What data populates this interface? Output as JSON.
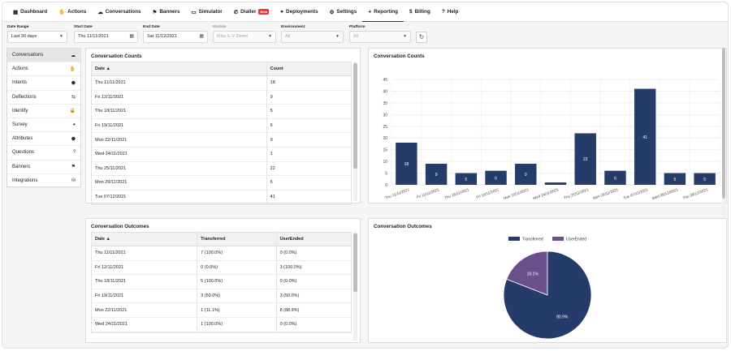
{
  "nav": {
    "items": [
      {
        "icon": "dashboard-icon",
        "glyph": "▦",
        "label": "Dashboard"
      },
      {
        "icon": "actions-icon",
        "glyph": "✋",
        "label": "Actions"
      },
      {
        "icon": "conversations-icon",
        "glyph": "☁",
        "label": "Conversations"
      },
      {
        "icon": "banners-icon",
        "glyph": "⚑",
        "label": "Banners"
      },
      {
        "icon": "simulator-icon",
        "glyph": "▭",
        "label": "Simulator"
      },
      {
        "icon": "dialler-icon",
        "glyph": "✆",
        "label": "Dialler",
        "badge": "Beta"
      },
      {
        "icon": "deployments-icon",
        "glyph": "●",
        "label": "Deployments"
      },
      {
        "icon": "settings-icon",
        "glyph": "⚙",
        "label": "Settings"
      },
      {
        "icon": "reporting-icon",
        "glyph": "◕",
        "label": "Reporting",
        "active": true
      },
      {
        "icon": "billing-icon",
        "glyph": "$",
        "label": "Billing"
      },
      {
        "icon": "help-icon",
        "glyph": "?",
        "label": "Help"
      }
    ]
  },
  "filters": {
    "date_range": {
      "label": "Date Range",
      "value": "Last 30 days"
    },
    "start_date": {
      "label": "Start Date",
      "value": "Thu 11/11/2021"
    },
    "end_date": {
      "label": "End Date",
      "value": "Sat 11/12/2021"
    },
    "module": {
      "label": "Module",
      "value": "Mike E.V Demo"
    },
    "environment": {
      "label": "Environment",
      "value": "All"
    },
    "platform": {
      "label": "Platform",
      "value": "All"
    }
  },
  "sidebar": {
    "items": [
      {
        "label": "Conversations",
        "glyph": "☁",
        "icon": "conversations-icon",
        "active": true
      },
      {
        "label": "Actions",
        "glyph": "✋",
        "icon": "actions-icon"
      },
      {
        "label": "Intents",
        "glyph": "⬣",
        "icon": "intents-icon"
      },
      {
        "label": "Deflections",
        "glyph": "⇆",
        "icon": "deflections-icon"
      },
      {
        "label": "Identify",
        "glyph": "🔒",
        "icon": "lock-icon"
      },
      {
        "label": "Survey",
        "glyph": "◕",
        "icon": "survey-icon"
      },
      {
        "label": "Attributes",
        "glyph": "⬣",
        "icon": "tag-icon"
      },
      {
        "label": "Questions",
        "glyph": "?",
        "icon": "question-icon"
      },
      {
        "label": "Banners",
        "glyph": "⚑",
        "icon": "flag-icon"
      },
      {
        "label": "Integrations",
        "glyph": "⛁",
        "icon": "database-icon"
      }
    ]
  },
  "counts_table": {
    "title": "Conversation Counts",
    "headers": [
      "Date ▲",
      "Count"
    ],
    "rows": [
      [
        "Thu 11/11/2021",
        "18"
      ],
      [
        "Fri 12/11/2021",
        "9"
      ],
      [
        "Thu 18/11/2021",
        "5"
      ],
      [
        "Fri 19/11/2021",
        "6"
      ],
      [
        "Mon 22/11/2021",
        "9"
      ],
      [
        "Wed 24/11/2021",
        "1"
      ],
      [
        "Thu 25/11/2021",
        "22"
      ],
      [
        "Mon 29/11/2021",
        "6"
      ],
      [
        "Tue 07/12/2021",
        "41"
      ]
    ]
  },
  "outcomes_table": {
    "title": "Conversation Outcomes",
    "headers": [
      "Date ▲",
      "Transferred",
      "UserEnded"
    ],
    "rows": [
      [
        "Thu 11/11/2021",
        "7 (100.0%)",
        "0 (0.0%)"
      ],
      [
        "Fri 12/11/2021",
        "0 (0.0%)",
        "3 (100.0%)"
      ],
      [
        "Thu 18/11/2021",
        "5 (100.0%)",
        "0 (0.0%)"
      ],
      [
        "Fri 19/11/2021",
        "3 (50.0%)",
        "3 (50.0%)"
      ],
      [
        "Mon 22/11/2021",
        "1 (11.1%)",
        "8 (88.9%)"
      ],
      [
        "Wed 24/11/2021",
        "1 (100.0%)",
        "0 (0.0%)"
      ]
    ]
  },
  "chart_data": [
    {
      "type": "bar",
      "title": "Conversation Counts",
      "categories": [
        "Thu 11/11/2021",
        "Fri 12/11/2021",
        "Thu 18/11/2021",
        "Fri 19/11/2021",
        "Mon 22/11/2021",
        "Wed 24/11/2021",
        "Thu 25/11/2021",
        "Mon 29/11/2021",
        "Tue 07/12/2021",
        "Wed 08/12/2021",
        "Thu 09/12/2021"
      ],
      "values": [
        18,
        9,
        5,
        6,
        9,
        1,
        22,
        6,
        41,
        5,
        5
      ],
      "ylim": [
        0,
        45
      ],
      "yticks": [
        0,
        5,
        10,
        15,
        20,
        25,
        30,
        35,
        40,
        45
      ],
      "grid": true,
      "color": "#253c6b"
    },
    {
      "type": "pie",
      "title": "Conversation Outcomes",
      "legend_position": "top",
      "series": [
        {
          "name": "Transferred",
          "value": 80.9,
          "label": "80.9%",
          "color": "#253c6b"
        },
        {
          "name": "UserEnded",
          "value": 19.1,
          "label": "19.1%",
          "color": "#6b4f8a"
        }
      ]
    }
  ]
}
